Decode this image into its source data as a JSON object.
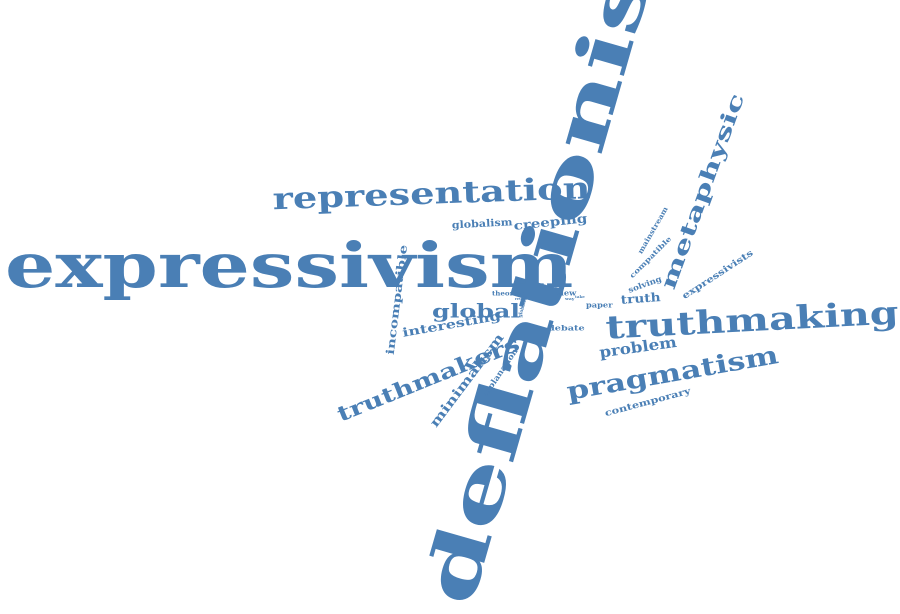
{
  "words": [
    {
      "text": "deflationism"
    },
    {
      "text": "expressivism"
    },
    {
      "text": "truthmaking"
    },
    {
      "text": "representation"
    },
    {
      "text": "pragmatism"
    },
    {
      "text": "metaphysic"
    },
    {
      "text": "truthmakers"
    },
    {
      "text": "global"
    },
    {
      "text": "minimalism"
    },
    {
      "text": "problem"
    },
    {
      "text": "interesting"
    },
    {
      "text": "incompatible"
    },
    {
      "text": "creeping"
    },
    {
      "text": "globalism"
    },
    {
      "text": "contemporary"
    },
    {
      "text": "expressivists"
    },
    {
      "text": "truth"
    },
    {
      "text": "explanation"
    },
    {
      "text": "compatible"
    },
    {
      "text": "mainstream"
    },
    {
      "text": "solving"
    },
    {
      "text": "debate"
    },
    {
      "text": "paper"
    },
    {
      "text": "view"
    },
    {
      "text": "theories"
    },
    {
      "text": "globalist"
    },
    {
      "text": "sound"
    },
    {
      "text": "way"
    },
    {
      "text": "take"
    },
    {
      "text": "reveal"
    }
  ],
  "colors": {
    "word": "#4a7fb5",
    "background": "#ffffff"
  }
}
